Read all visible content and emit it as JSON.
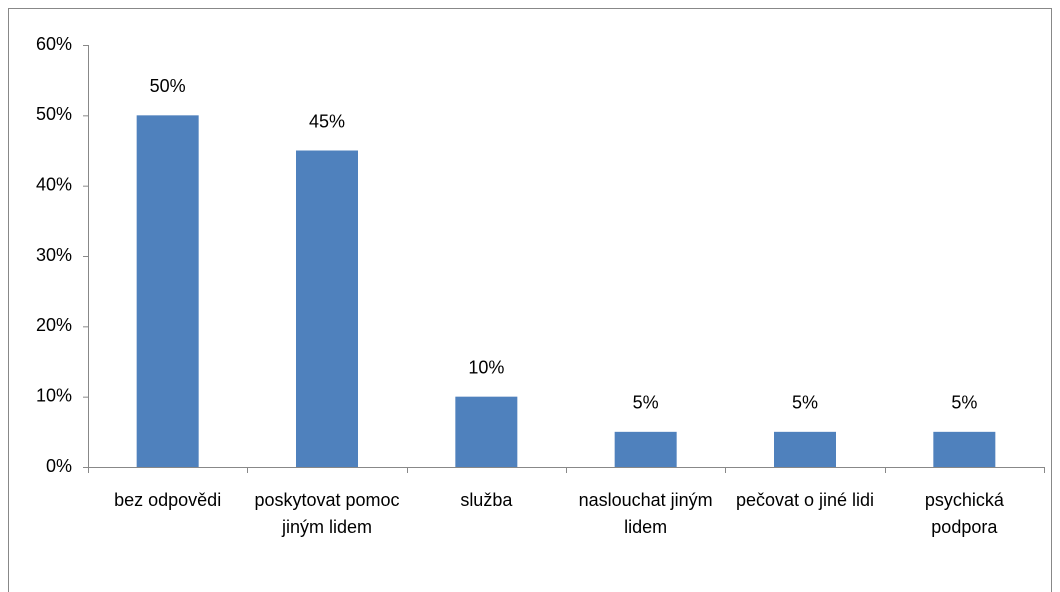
{
  "chart_data": {
    "type": "bar",
    "categories": [
      "bez odpovědi",
      "poskytovat pomoc jiným lidem",
      "služba",
      "naslouchat jiným lidem",
      "pečovat o jiné lidi",
      "psychická podpora"
    ],
    "values": [
      50,
      45,
      10,
      5,
      5,
      5
    ],
    "value_labels": [
      "50%",
      "45%",
      "10%",
      "5%",
      "5%",
      "5%"
    ],
    "color": "#4f81bd",
    "ylim": [
      0,
      60
    ],
    "yticks": [
      {
        "value": 0,
        "label": "0%"
      },
      {
        "value": 10,
        "label": "10%"
      },
      {
        "value": 20,
        "label": "20%"
      },
      {
        "value": 30,
        "label": "30%"
      },
      {
        "value": 40,
        "label": "40%"
      },
      {
        "value": 50,
        "label": "50%"
      },
      {
        "value": 60,
        "label": "60%"
      }
    ],
    "grid": false
  }
}
